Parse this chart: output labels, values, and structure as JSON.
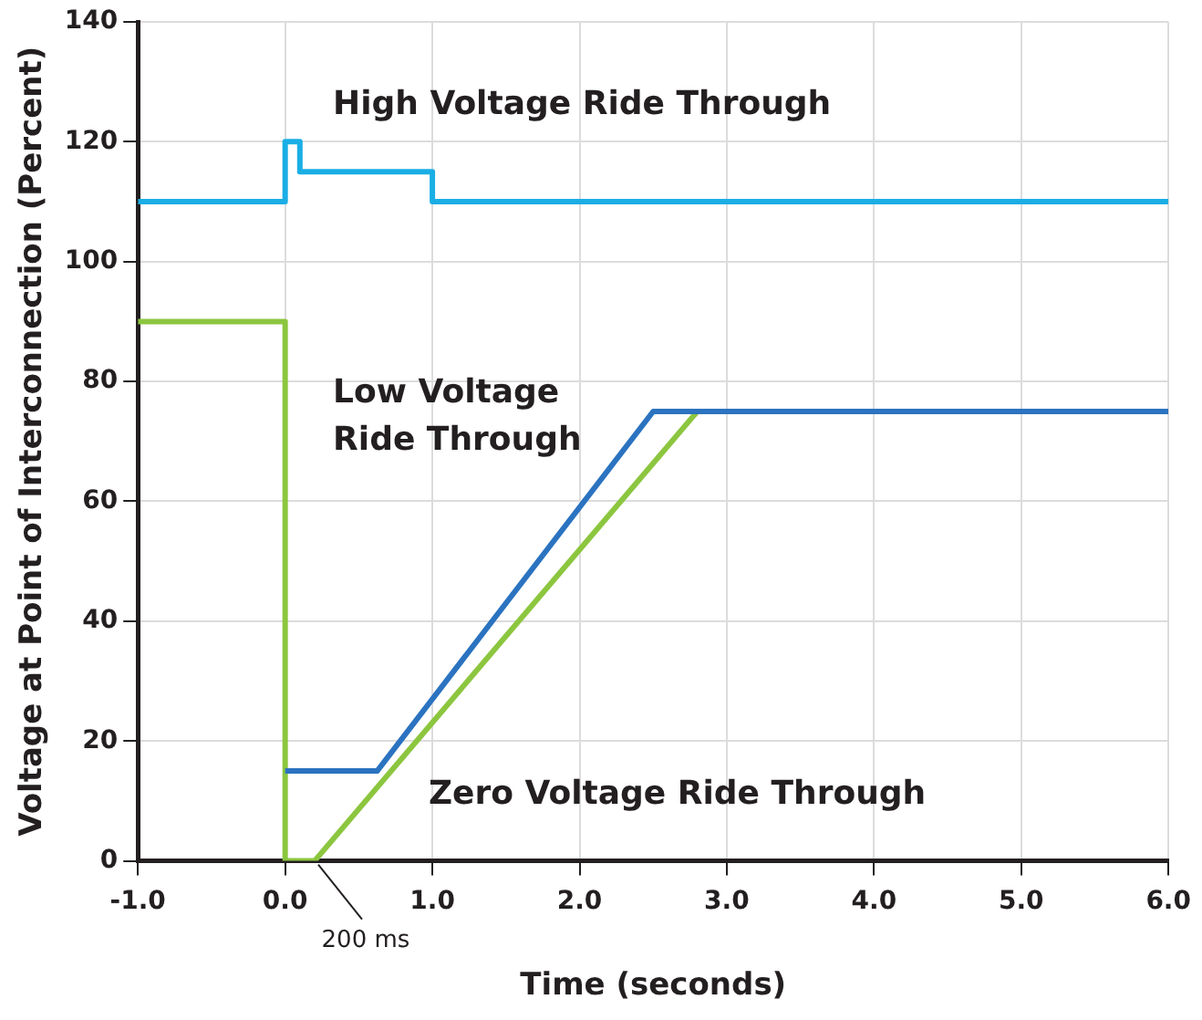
{
  "chart_data": {
    "type": "line",
    "xlabel": "Time (seconds)",
    "ylabel": "Voltage at Point of Interconnection (Percent)",
    "xlim": [
      -1,
      6
    ],
    "xticks": [
      {
        "value": -1,
        "label": "-1.0"
      },
      {
        "value": 0,
        "label": "0.0"
      },
      {
        "value": 1,
        "label": "1.0"
      },
      {
        "value": 2,
        "label": "2.0"
      },
      {
        "value": 3,
        "label": "3.0"
      },
      {
        "value": 4,
        "label": "4.0"
      },
      {
        "value": 5,
        "label": "5.0"
      },
      {
        "value": 6,
        "label": "6.0"
      }
    ],
    "ylim": [
      0,
      140
    ],
    "yticks": [
      0,
      20,
      40,
      60,
      80,
      100,
      120,
      140
    ],
    "grid": true,
    "legend": false,
    "marker": "none",
    "line_style": "solid",
    "series": [
      {
        "name": "High Voltage Ride Through",
        "color": "#1aaee5",
        "x": [
          -1,
          0,
          0,
          0.1,
          0.1,
          1,
          1,
          6
        ],
        "values": [
          110,
          110,
          120,
          120,
          115,
          115,
          110,
          110
        ]
      },
      {
        "name": "Low Voltage\nRide Through",
        "color": "#2b73c0",
        "x": [
          0,
          0.625,
          2.5,
          6
        ],
        "values": [
          15,
          15,
          75,
          75
        ]
      },
      {
        "name": "Zero Voltage Ride Through",
        "color": "#8cc63f",
        "x": [
          -1,
          0,
          0,
          0.2,
          2.8
        ],
        "values": [
          90,
          90,
          0,
          0,
          75
        ]
      }
    ],
    "annotations": [
      {
        "text": "200 ms",
        "x": 0.2,
        "y": 0
      }
    ]
  }
}
